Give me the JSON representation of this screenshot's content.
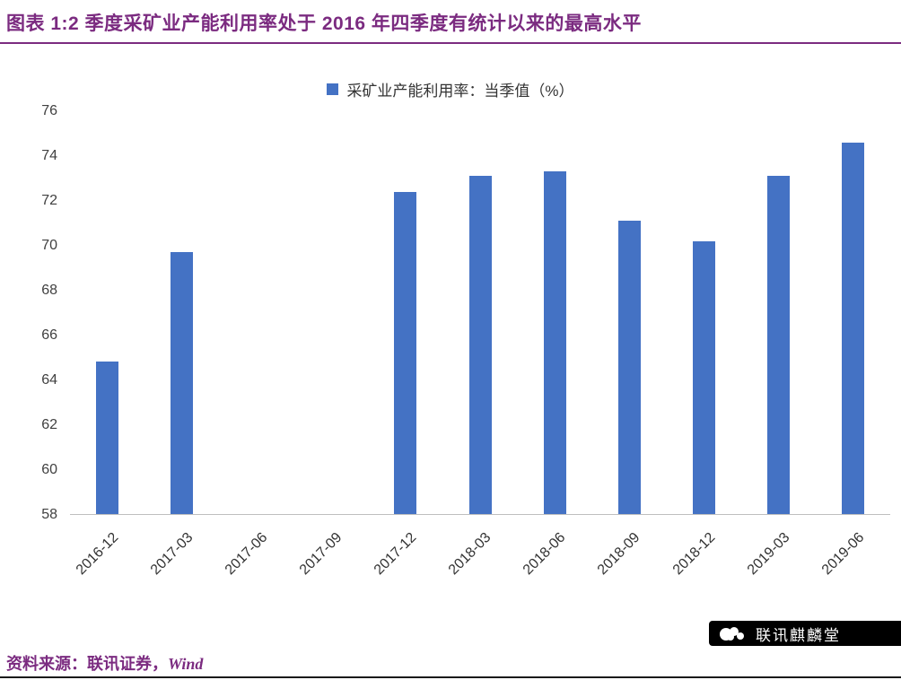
{
  "header": {
    "title": "图表 1:2 季度采矿业产能利用率处于 2016 年四季度有统计以来的最高水平",
    "accent_color": "#7B2B80"
  },
  "chart_data": {
    "type": "bar",
    "legend": "采矿业产能利用率：当季值（%）",
    "legend_position": "top",
    "categories": [
      "2016-12",
      "2017-03",
      "2017-06",
      "2017-09",
      "2017-12",
      "2018-03",
      "2018-06",
      "2018-09",
      "2018-12",
      "2019-03",
      "2019-06"
    ],
    "values": [
      64.8,
      69.7,
      null,
      null,
      72.4,
      73.1,
      73.3,
      71.1,
      70.2,
      73.1,
      74.6
    ],
    "ylim": [
      58,
      76
    ],
    "yticks": [
      58,
      60,
      62,
      64,
      66,
      68,
      70,
      72,
      74,
      76
    ],
    "bar_color": "#4472C4",
    "grid": false
  },
  "footer": {
    "source_prefix": "资料来源：联讯证券，",
    "source_wind": "Wind",
    "brand": "联讯麒麟堂"
  }
}
